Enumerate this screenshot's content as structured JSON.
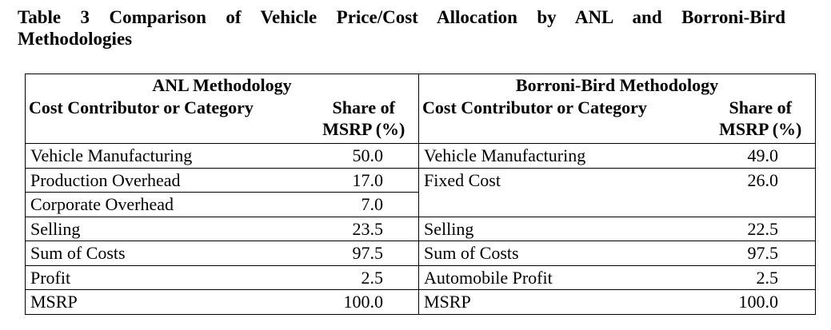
{
  "caption": {
    "line1": "Table 3 Comparison of Vehicle Price/Cost Allocation by ANL and Borroni-Bird",
    "line2": "Methodologies"
  },
  "table": {
    "groups": [
      "ANL Methodology",
      "Borroni-Bird Methodology"
    ],
    "columns": {
      "category": "Cost Contributor or Category",
      "share_line1": "Share of",
      "share_line2": "MSRP (%)"
    },
    "anl_rows": [
      {
        "label": "Vehicle Manufacturing",
        "value": "50.0"
      },
      {
        "label": "Production Overhead",
        "value": "17.0"
      },
      {
        "label": "Corporate Overhead",
        "value": "7.0"
      },
      {
        "label": "Selling",
        "value": "23.5"
      },
      {
        "label": "Sum of Costs",
        "value": "97.5"
      },
      {
        "label": "Profit",
        "value": "2.5"
      },
      {
        "label": "MSRP",
        "value": "100.0"
      }
    ],
    "bb_rows": [
      {
        "label": "Vehicle Manufacturing",
        "value": "49.0"
      },
      {
        "label": "Fixed Cost",
        "value": "26.0"
      },
      {
        "label": "Selling",
        "value": "22.5"
      },
      {
        "label": "Sum of Costs",
        "value": "97.5"
      },
      {
        "label": "Automobile Profit",
        "value": "2.5"
      },
      {
        "label": "MSRP",
        "value": "100.0"
      }
    ]
  }
}
